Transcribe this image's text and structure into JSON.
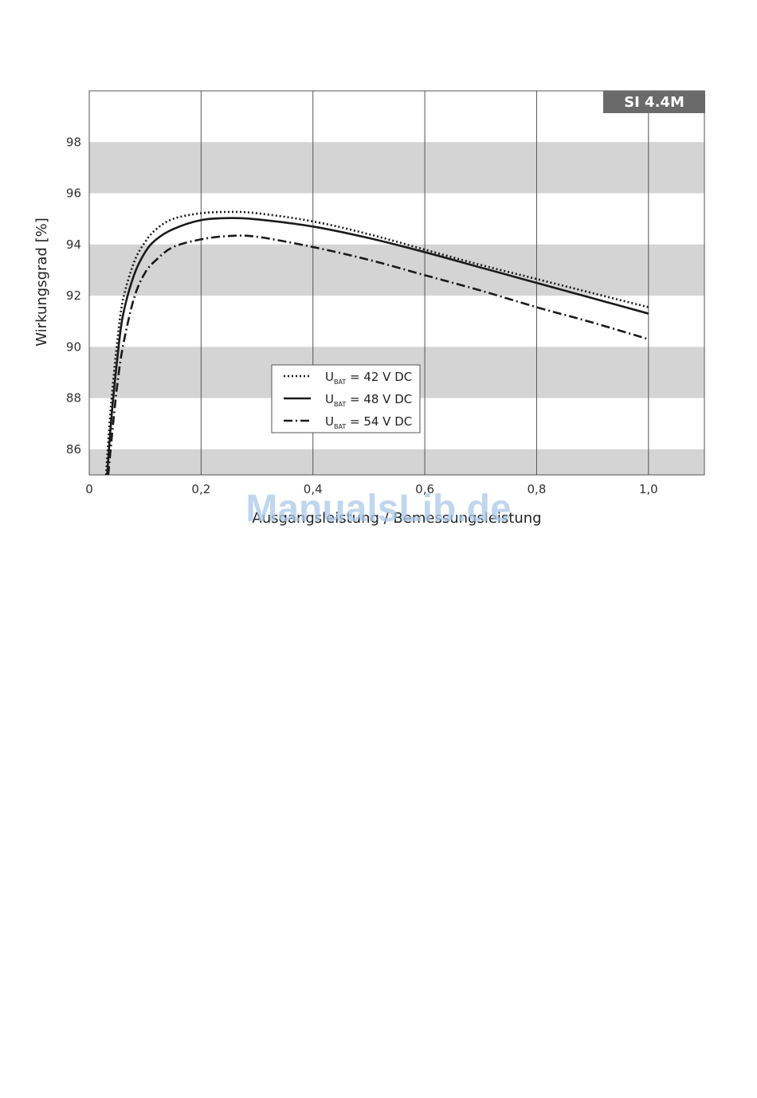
{
  "watermark": "ManualsLib.de",
  "chart_data": {
    "type": "line",
    "badge": "SI 4.4M",
    "xlabel": "Ausgangsleistung / Bemessungsleistung",
    "ylabel": "Wirkungsgrad [%]",
    "xlim": [
      0,
      1.1
    ],
    "ylim": [
      85,
      100
    ],
    "x_ticks": [
      0,
      0.2,
      0.4,
      0.6,
      0.8,
      1.0
    ],
    "x_tick_labels": [
      "0",
      "0,2",
      "0,4",
      "0,6",
      "0,8",
      "1,0"
    ],
    "y_ticks": [
      86,
      88,
      90,
      92,
      94,
      96,
      98
    ],
    "y_tick_labels": [
      "86",
      "88",
      "90",
      "92",
      "94",
      "96",
      "98"
    ],
    "y_bands": [
      [
        85,
        86
      ],
      [
        88,
        90
      ],
      [
        92,
        94
      ],
      [
        96,
        98
      ]
    ],
    "band_color": "#d4d4d4",
    "grid": "vertical",
    "legend_position": "bottom-center",
    "series": [
      {
        "name": "U_BAT = 42 V DC",
        "label_main": "U",
        "label_sub": "BAT",
        "label_rest": " = 42 V DC",
        "style": "dotted",
        "color": "#1a1a1a",
        "x": [
          0.03,
          0.035,
          0.04,
          0.05,
          0.06,
          0.08,
          0.1,
          0.12,
          0.15,
          0.2,
          0.25,
          0.3,
          0.4,
          0.5,
          0.6,
          0.7,
          0.8,
          0.9,
          1.0
        ],
        "y": [
          85.0,
          86.6,
          88.0,
          90.2,
          91.8,
          93.3,
          94.1,
          94.6,
          95.0,
          95.22,
          95.27,
          95.22,
          94.9,
          94.4,
          93.8,
          93.2,
          92.65,
          92.1,
          91.55
        ]
      },
      {
        "name": "U_BAT = 48 V DC",
        "label_main": "U",
        "label_sub": "BAT",
        "label_rest": " = 48 V DC",
        "style": "solid",
        "color": "#1a1a1a",
        "x": [
          0.032,
          0.037,
          0.042,
          0.05,
          0.06,
          0.08,
          0.1,
          0.12,
          0.15,
          0.2,
          0.25,
          0.3,
          0.4,
          0.5,
          0.6,
          0.7,
          0.8,
          0.9,
          1.0
        ],
        "y": [
          85.0,
          86.5,
          87.8,
          89.5,
          91.2,
          92.8,
          93.7,
          94.2,
          94.6,
          94.95,
          95.03,
          94.98,
          94.7,
          94.25,
          93.7,
          93.1,
          92.5,
          91.9,
          91.3
        ]
      },
      {
        "name": "U_BAT = 54 V DC",
        "label_main": "U",
        "label_sub": "BAT",
        "label_rest": " = 54 V DC",
        "style": "dashdot",
        "color": "#1a1a1a",
        "x": [
          0.034,
          0.04,
          0.045,
          0.05,
          0.06,
          0.08,
          0.1,
          0.12,
          0.15,
          0.2,
          0.25,
          0.3,
          0.4,
          0.5,
          0.6,
          0.7,
          0.8,
          0.9,
          1.0
        ],
        "y": [
          85.0,
          86.4,
          87.5,
          88.5,
          90.0,
          91.9,
          92.9,
          93.4,
          93.9,
          94.2,
          94.33,
          94.3,
          93.9,
          93.4,
          92.8,
          92.2,
          91.55,
          90.95,
          90.3
        ]
      }
    ]
  }
}
